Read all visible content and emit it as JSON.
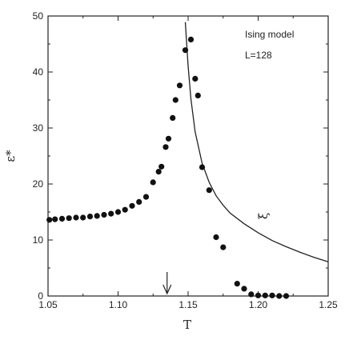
{
  "chart_data": {
    "type": "scatter",
    "xlabel": "T",
    "ylabel": "ε*",
    "xlim": [
      1.05,
      1.25
    ],
    "ylim": [
      0,
      50
    ],
    "x_ticks": [
      "1.05",
      "1.10",
      "1.15",
      "1.20",
      "1.25"
    ],
    "y_ticks": [
      "0",
      "10",
      "20",
      "30",
      "40",
      "50"
    ],
    "legend": [
      "Ising model",
      "L=128"
    ],
    "grid": false,
    "arrow_marker": {
      "x": 1.135,
      "description": "downward arrow above x-axis"
    },
    "series": [
      {
        "kind": "points",
        "points": [
          [
            1.051,
            13.6
          ],
          [
            1.055,
            13.7
          ],
          [
            1.06,
            13.8
          ],
          [
            1.065,
            13.9
          ],
          [
            1.07,
            14.0
          ],
          [
            1.075,
            14.0
          ],
          [
            1.08,
            14.2
          ],
          [
            1.085,
            14.3
          ],
          [
            1.09,
            14.5
          ],
          [
            1.095,
            14.7
          ],
          [
            1.1,
            15.0
          ],
          [
            1.105,
            15.4
          ],
          [
            1.11,
            16.1
          ],
          [
            1.115,
            16.8
          ],
          [
            1.12,
            17.7
          ],
          [
            1.125,
            20.3
          ],
          [
            1.129,
            22.2
          ],
          [
            1.131,
            23.1
          ],
          [
            1.134,
            26.6
          ],
          [
            1.136,
            28.1
          ],
          [
            1.139,
            31.8
          ],
          [
            1.141,
            35.0
          ],
          [
            1.144,
            37.6
          ],
          [
            1.148,
            43.9
          ],
          [
            1.152,
            45.8
          ],
          [
            1.155,
            38.8
          ],
          [
            1.157,
            35.8
          ],
          [
            1.16,
            23.0
          ],
          [
            1.165,
            18.9
          ],
          [
            1.17,
            10.5
          ],
          [
            1.175,
            8.7
          ],
          [
            1.185,
            2.2
          ],
          [
            1.19,
            1.3
          ],
          [
            1.195,
            0.3
          ],
          [
            1.2,
            0.1
          ],
          [
            1.205,
            0.1
          ],
          [
            1.21,
            0.1
          ],
          [
            1.215,
            0.0
          ],
          [
            1.22,
            0.0
          ]
        ]
      },
      {
        "name": "ξ",
        "kind": "line",
        "points": [
          [
            1.148,
            48.9
          ],
          [
            1.15,
            41.1
          ],
          [
            1.152,
            35.2
          ],
          [
            1.155,
            29.3
          ],
          [
            1.16,
            23.7
          ],
          [
            1.165,
            20.3
          ],
          [
            1.17,
            17.9
          ],
          [
            1.175,
            16.2
          ],
          [
            1.18,
            14.8
          ],
          [
            1.19,
            12.9
          ],
          [
            1.2,
            11.3
          ],
          [
            1.21,
            9.9
          ],
          [
            1.22,
            8.8
          ],
          [
            1.23,
            7.8
          ],
          [
            1.24,
            6.9
          ],
          [
            1.25,
            6.1
          ]
        ]
      }
    ]
  }
}
